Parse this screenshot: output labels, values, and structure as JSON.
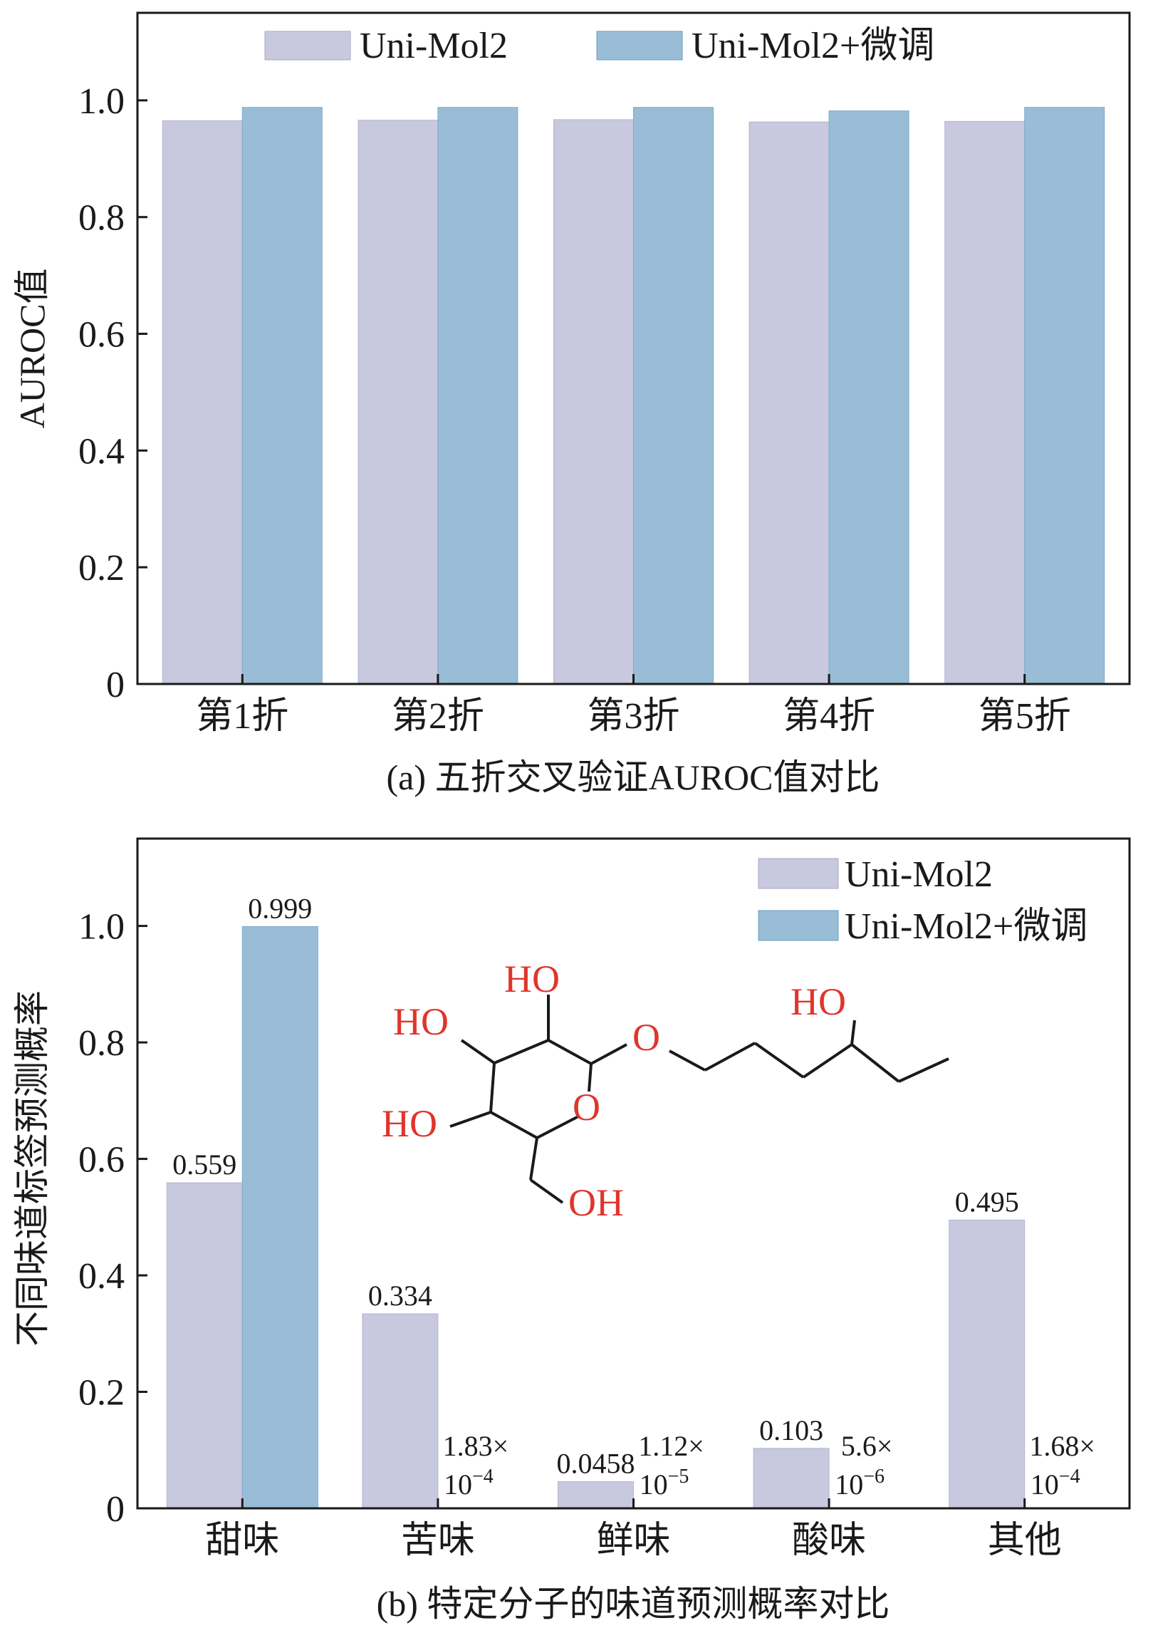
{
  "colors": {
    "uni_mol2": "#c8c8df",
    "uni_mol2_ft": "#99bdd6",
    "axis": "#1a1a1a",
    "molecule_label": "#e0352c",
    "molecule_bond": "#1a1a1a"
  },
  "chart_data": [
    {
      "type": "bar",
      "caption": "(a) 五折交叉验证AUROC值对比",
      "xlabel": "",
      "ylabel": "AUROC值",
      "ylim": [
        0,
        1.15
      ],
      "yticks": [
        "0",
        "0.2",
        "0.4",
        "0.6",
        "0.8",
        "1.0"
      ],
      "categories": [
        "第1折",
        "第2折",
        "第3折",
        "第4折",
        "第5折"
      ],
      "legend_position": "top",
      "series": [
        {
          "name": "Uni-Mol2",
          "values": [
            0.965,
            0.966,
            0.967,
            0.963,
            0.964
          ]
        },
        {
          "name": "Uni-Mol2+微调",
          "values": [
            0.988,
            0.988,
            0.988,
            0.982,
            0.988
          ]
        }
      ]
    },
    {
      "type": "bar",
      "caption": "(b) 特定分子的味道预测概率对比",
      "xlabel": "",
      "ylabel": "不同味道标签预测概率",
      "ylim": [
        0,
        1.15
      ],
      "yticks": [
        "0",
        "0.2",
        "0.4",
        "0.6",
        "0.8",
        "1.0"
      ],
      "categories": [
        "甜味",
        "苦味",
        "鲜味",
        "酸味",
        "其他"
      ],
      "legend_position": "top-right",
      "series": [
        {
          "name": "Uni-Mol2",
          "values": [
            0.559,
            0.334,
            0.0458,
            0.103,
            0.495
          ]
        },
        {
          "name": "Uni-Mol2+微调",
          "values": [
            0.999,
            0.000183,
            1.12e-05,
            5.6e-06,
            0.000168
          ]
        }
      ],
      "data_labels": {
        "Uni-Mol2": [
          "0.559",
          "0.334",
          "0.0458",
          "0.103",
          "0.495"
        ],
        "Uni-Mol2+微调": [
          {
            "mantissa": "0.999",
            "exponent": ""
          },
          {
            "mantissa": "1.83×",
            "exponent": "−4"
          },
          {
            "mantissa": "1.12×",
            "exponent": "−5"
          },
          {
            "mantissa": "5.6×",
            "exponent": "−6"
          },
          {
            "mantissa": "1.68×",
            "exponent": "−4"
          }
        ]
      },
      "molecule_labels": [
        "HO",
        "HO",
        "HO",
        "O",
        "O",
        "HO",
        "OH"
      ]
    }
  ]
}
